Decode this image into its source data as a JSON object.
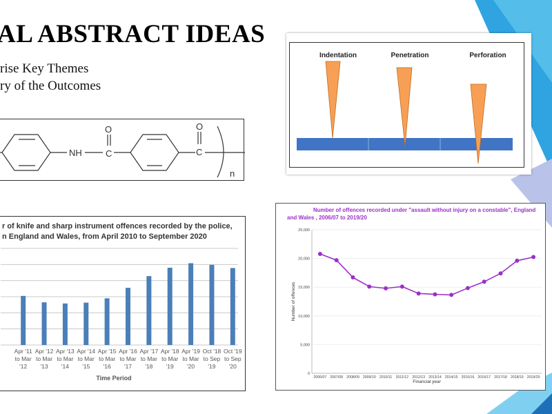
{
  "slide": {
    "title": "AL ABSTRACT IDEAS",
    "bullets": [
      "rise Key Themes",
      "ry of the Outcomes"
    ]
  },
  "colors": {
    "accent_blue": "#2fa4e0",
    "light_blue": "#7fd0f0",
    "bar_blue": "#4a7fb8",
    "line_purple": "#9b30c8",
    "indenter_orange": "#f7a055",
    "plate_blue": "#3f75c4"
  },
  "chemistry": {
    "atoms": {
      "nh": "NH",
      "c1": "C",
      "o1": "O",
      "c2": "C",
      "o2": "O",
      "n": "n"
    }
  },
  "indentation_diagram": {
    "labels": [
      "Indentation",
      "Penetration",
      "Perforation"
    ]
  },
  "chart_data": [
    {
      "type": "bar",
      "title_lines": [
        "r of knife and sharp instrument offences recorded by the police,",
        "n England and Wales, from April 2010 to September 2020"
      ],
      "xlabel": "Time Period",
      "ylabel": "",
      "categories": [
        [
          "Apr '11",
          "to Mar",
          "'12"
        ],
        [
          "Apr '12",
          "to Mar",
          "'13"
        ],
        [
          "Apr '13",
          "to Mar",
          "'14"
        ],
        [
          "Apr '14",
          "to Mar",
          "'15"
        ],
        [
          "Apr '15",
          "to Mar",
          "'16"
        ],
        [
          "Apr '16",
          "to Mar",
          "'17"
        ],
        [
          "Apr '17",
          "to Mar",
          "'18"
        ],
        [
          "Apr '18",
          "to Mar",
          "'19"
        ],
        [
          "Apr '19",
          "to Mar",
          "'20"
        ],
        [
          "Oct '18",
          "to Sep",
          "'19"
        ],
        [
          "Oct '19",
          "to Sep",
          "'20"
        ]
      ],
      "values": [
        30500,
        26500,
        25800,
        26300,
        29000,
        35500,
        42800,
        48000,
        50800,
        49800,
        47800
      ],
      "ylim": [
        0,
        60000
      ],
      "grid": true
    },
    {
      "type": "line",
      "title_lines": [
        "Number of offences recorded under \"assault without injury on a constable\", England",
        "and Wales , 2006/07 to 2019/20"
      ],
      "xlabel": "Financial year",
      "ylabel": "Number of offences",
      "x": [
        "2006/07",
        "2007/08",
        "2008/09",
        "2009/10",
        "2010/11",
        "2011/12",
        "2012/13",
        "2013/14",
        "2014/15",
        "2015/16",
        "2016/17",
        "2017/18",
        "2018/19",
        "2019/20"
      ],
      "values": [
        20800,
        19700,
        16700,
        15100,
        14800,
        15100,
        13900,
        13750,
        13650,
        14850,
        15950,
        17400,
        19600,
        20250
      ],
      "yticks": [
        "0",
        "5,000",
        "10,000",
        "15,000",
        "20,000",
        "25,000"
      ],
      "ylim": [
        0,
        25000
      ],
      "grid": true
    }
  ]
}
